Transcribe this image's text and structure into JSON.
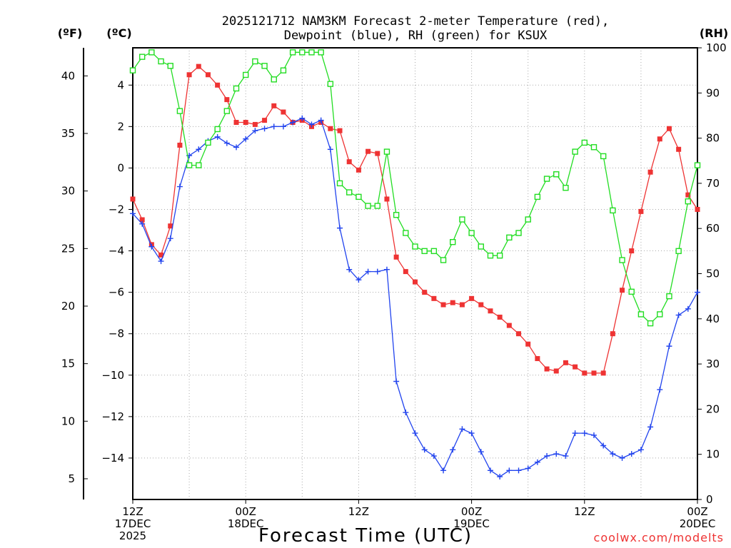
{
  "chart_data": {
    "type": "line",
    "title_line1": "2025121712 NAM3KM Forecast 2-meter Temperature (red),",
    "title_line2": "Dewpoint (blue), RH (green) for KSUX",
    "xlabel": "Forecast Time (UTC)",
    "credit": "coolwx.com/modelts",
    "units": {
      "fahrenheit": "(ºF)",
      "celsius": "(ºC)",
      "rh": "(RH)"
    },
    "x_range_hours": [
      0,
      60
    ],
    "x_ticks": [
      {
        "hour": 0,
        "line1": "12Z",
        "line2": "17DEC",
        "line3": "2025"
      },
      {
        "hour": 12,
        "line1": "00Z",
        "line2": "18DEC",
        "line3": ""
      },
      {
        "hour": 24,
        "line1": "12Z",
        "line2": "",
        "line3": ""
      },
      {
        "hour": 36,
        "line1": "00Z",
        "line2": "19DEC",
        "line3": ""
      },
      {
        "hour": 48,
        "line1": "12Z",
        "line2": "",
        "line3": ""
      },
      {
        "hour": 60,
        "line1": "00Z",
        "line2": "20DEC",
        "line3": ""
      }
    ],
    "celsius_axis": {
      "range": [
        -16.0,
        5.8
      ],
      "ticks": [
        "4",
        "2",
        "0",
        "−2",
        "−4",
        "−6",
        "−8",
        "−10",
        "−12",
        "−14"
      ]
    },
    "fahrenheit_axis": {
      "ticks": [
        "40",
        "35",
        "30",
        "25",
        "20",
        "15",
        "10",
        "5"
      ]
    },
    "rh_axis": {
      "range": [
        0,
        100
      ],
      "ticks": [
        "100",
        "90",
        "80",
        "70",
        "60",
        "50",
        "40",
        "30",
        "20",
        "10",
        "0"
      ]
    },
    "series": [
      {
        "name": "Temperature",
        "color": "#ee3333",
        "marker": "filled-square",
        "axis": "celsius",
        "values": [
          -1.5,
          -2.5,
          -3.7,
          -4.2,
          -2.8,
          1.1,
          4.5,
          4.9,
          4.5,
          4.0,
          3.3,
          2.2,
          2.2,
          2.1,
          2.3,
          3.0,
          2.7,
          2.2,
          2.3,
          2.0,
          2.2,
          1.9,
          1.8,
          0.3,
          -0.1,
          0.8,
          0.7,
          -1.5,
          -4.3,
          -5.0,
          -5.5,
          -6.0,
          -6.3,
          -6.6,
          -6.5,
          -6.6,
          -6.3,
          -6.6,
          -6.9,
          -7.2,
          -7.6,
          -8.0,
          -8.5,
          -9.2,
          -9.7,
          -9.8,
          -9.4,
          -9.6,
          -9.9,
          -9.9,
          -9.9,
          -8.0,
          -5.9,
          -4.0,
          -2.1,
          -0.2,
          1.4,
          1.9,
          0.9,
          -1.3,
          -2.0
        ]
      },
      {
        "name": "Dewpoint",
        "color": "#2244ee",
        "marker": "plus",
        "axis": "celsius",
        "values": [
          -2.2,
          -2.7,
          -3.8,
          -4.5,
          -3.4,
          -0.9,
          0.6,
          0.9,
          1.3,
          1.5,
          1.2,
          1.0,
          1.4,
          1.8,
          1.9,
          2.0,
          2.0,
          2.2,
          2.4,
          2.1,
          2.3,
          0.9,
          -2.9,
          -4.9,
          -5.4,
          -5.0,
          -5.0,
          -4.9,
          -10.3,
          -11.8,
          -12.8,
          -13.6,
          -13.9,
          -14.6,
          -13.6,
          -12.6,
          -12.8,
          -13.7,
          -14.6,
          -14.9,
          -14.6,
          -14.6,
          -14.5,
          -14.2,
          -13.9,
          -13.8,
          -13.9,
          -12.8,
          -12.8,
          -12.9,
          -13.4,
          -13.8,
          -14.0,
          -13.8,
          -13.6,
          -12.5,
          -10.7,
          -8.6,
          -7.1,
          -6.8,
          -6.0
        ]
      },
      {
        "name": "RH",
        "color": "#22dd22",
        "marker": "open-square",
        "axis": "rh",
        "values": [
          95,
          98,
          99,
          97,
          96,
          86,
          74,
          74,
          79,
          82,
          86,
          91,
          94,
          97,
          96,
          93,
          95,
          99,
          99,
          99,
          99,
          92,
          70,
          68,
          67,
          65,
          65,
          77,
          63,
          59,
          56,
          55,
          55,
          53,
          57,
          62,
          59,
          56,
          54,
          54,
          58,
          59,
          62,
          67,
          71,
          72,
          69,
          77,
          79,
          78,
          76,
          64,
          53,
          46,
          41,
          39,
          41,
          45,
          55,
          66,
          74
        ]
      }
    ]
  }
}
